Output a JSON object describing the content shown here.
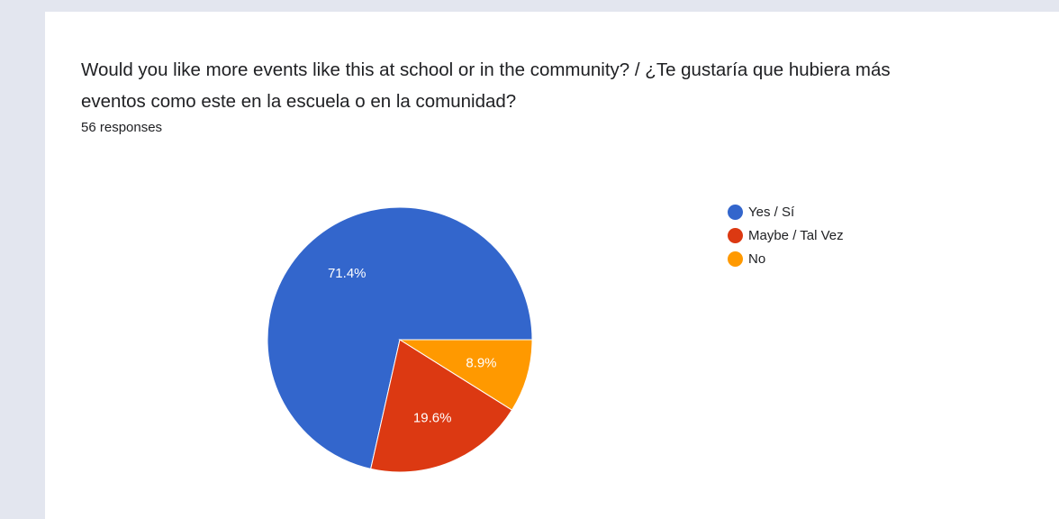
{
  "question": {
    "line1": "Would you like more events like this at school or in the community? / ¿Te gustaría que hubiera más",
    "line2": "eventos como este en la escuela o en la comunidad?",
    "responses": "56 responses"
  },
  "chart_data": {
    "type": "pie",
    "title": "",
    "slices": [
      {
        "label": "Yes / Sí",
        "value": 71.4,
        "display": "71.4%",
        "color": "#3366cc"
      },
      {
        "label": "Maybe / Tal Vez",
        "value": 19.6,
        "display": "19.6%",
        "color": "#dc3912"
      },
      {
        "label": "No",
        "value": 8.9,
        "display": "8.9%",
        "color": "#ff9900"
      }
    ],
    "start": "3 o'clock, counter-clockwise",
    "legend_position": "right"
  }
}
